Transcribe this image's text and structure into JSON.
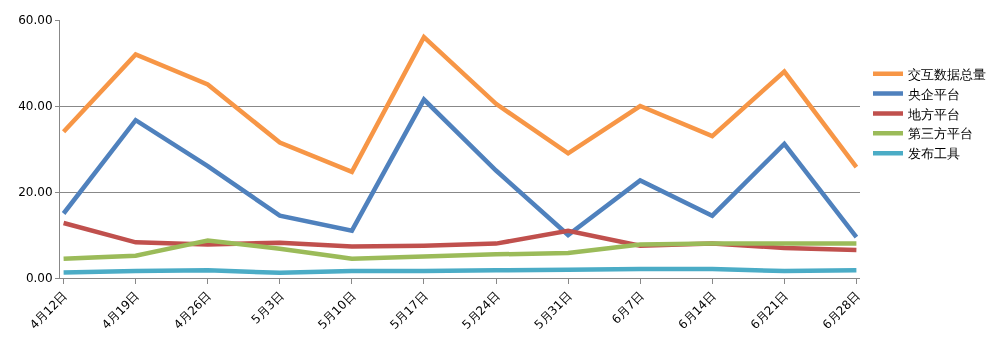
{
  "chart_data": {
    "type": "line",
    "categories": [
      "4月12日",
      "4月19日",
      "4月26日",
      "5月3日",
      "5月10日",
      "5月17日",
      "5月24日",
      "5月31日",
      "6月7日",
      "6月14日",
      "6月21日",
      "6月28日"
    ],
    "series": [
      {
        "name": "交互数据总量",
        "color": "#f79646",
        "values": [
          34,
          52,
          45,
          31.5,
          24.7,
          56,
          40.5,
          29,
          40,
          33,
          48,
          25.8
        ]
      },
      {
        "name": "央企平台",
        "color": "#4f81bd",
        "values": [
          15,
          36.7,
          26,
          14.5,
          11,
          41.5,
          25,
          10,
          22.7,
          14.5,
          31.2,
          9.5
        ]
      },
      {
        "name": "地方平台",
        "color": "#c0504d",
        "values": [
          12.8,
          8.3,
          7.8,
          8.2,
          7.3,
          7.5,
          8,
          11,
          7.5,
          8,
          7,
          6.5
        ]
      },
      {
        "name": "第三方平台",
        "color": "#9bbb59",
        "values": [
          4.5,
          5.2,
          8.7,
          6.8,
          4.5,
          5,
          5.5,
          5.8,
          7.8,
          8,
          8,
          8
        ]
      },
      {
        "name": "发布工具",
        "color": "#4bacc6",
        "values": [
          1.3,
          1.6,
          1.8,
          1.2,
          1.6,
          1.6,
          1.8,
          1.9,
          2.1,
          2.1,
          1.6,
          1.8
        ]
      }
    ],
    "ylim": [
      0,
      60
    ],
    "yticks": [
      {
        "value": 0,
        "label": "0.00"
      },
      {
        "value": 20,
        "label": "20.00"
      },
      {
        "value": 40,
        "label": "40.00"
      },
      {
        "value": 60,
        "label": "60.00"
      }
    ],
    "grid": "y",
    "legend": "right",
    "marker": "none",
    "line_style": "solid"
  }
}
